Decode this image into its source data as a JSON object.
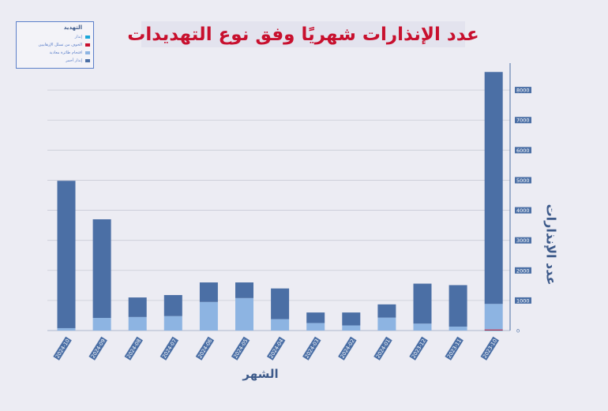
{
  "chart_data": {
    "type": "bar",
    "stacked": true,
    "title": "عدد الإنذارات شهريًا وفق نوع التهديدات",
    "xlabel": "الشهر",
    "ylabel": "عدد الإنذارات",
    "legend_title": "التهديد",
    "legend_position": "top-left",
    "grid": true,
    "ylim": [
      0,
      9000
    ],
    "yticks": [
      0,
      1000,
      2000,
      3000,
      4000,
      5000,
      6000,
      7000,
      8000
    ],
    "categories": [
      "2024-10",
      "2024-09",
      "2024-08",
      "2024-07",
      "2024-06",
      "2024-05",
      "2024-04",
      "2024-03",
      "2024-02",
      "2024-01",
      "2023-12",
      "2023-11",
      "2023-10"
    ],
    "series": [
      {
        "name": "إنذار",
        "color": "#1aa6d8",
        "values": [
          0,
          0,
          0,
          0,
          0,
          0,
          0,
          0,
          0,
          0,
          0,
          0,
          5
        ]
      },
      {
        "name": "الخوف من تسلل الإرهابيين",
        "color": "#c8102e",
        "values": [
          0,
          0,
          0,
          0,
          0,
          0,
          0,
          0,
          0,
          0,
          0,
          0,
          30
        ]
      },
      {
        "name": "اقتحام طائرة معادية",
        "color": "#8db4e2",
        "values": [
          80,
          420,
          450,
          480,
          950,
          1080,
          380,
          250,
          170,
          430,
          230,
          130,
          850
        ]
      },
      {
        "name": "إنذار أحمر",
        "color": "#4b6fa5",
        "values": [
          4900,
          3280,
          650,
          700,
          650,
          520,
          1020,
          350,
          430,
          440,
          1330,
          1380,
          7715
        ]
      }
    ]
  }
}
